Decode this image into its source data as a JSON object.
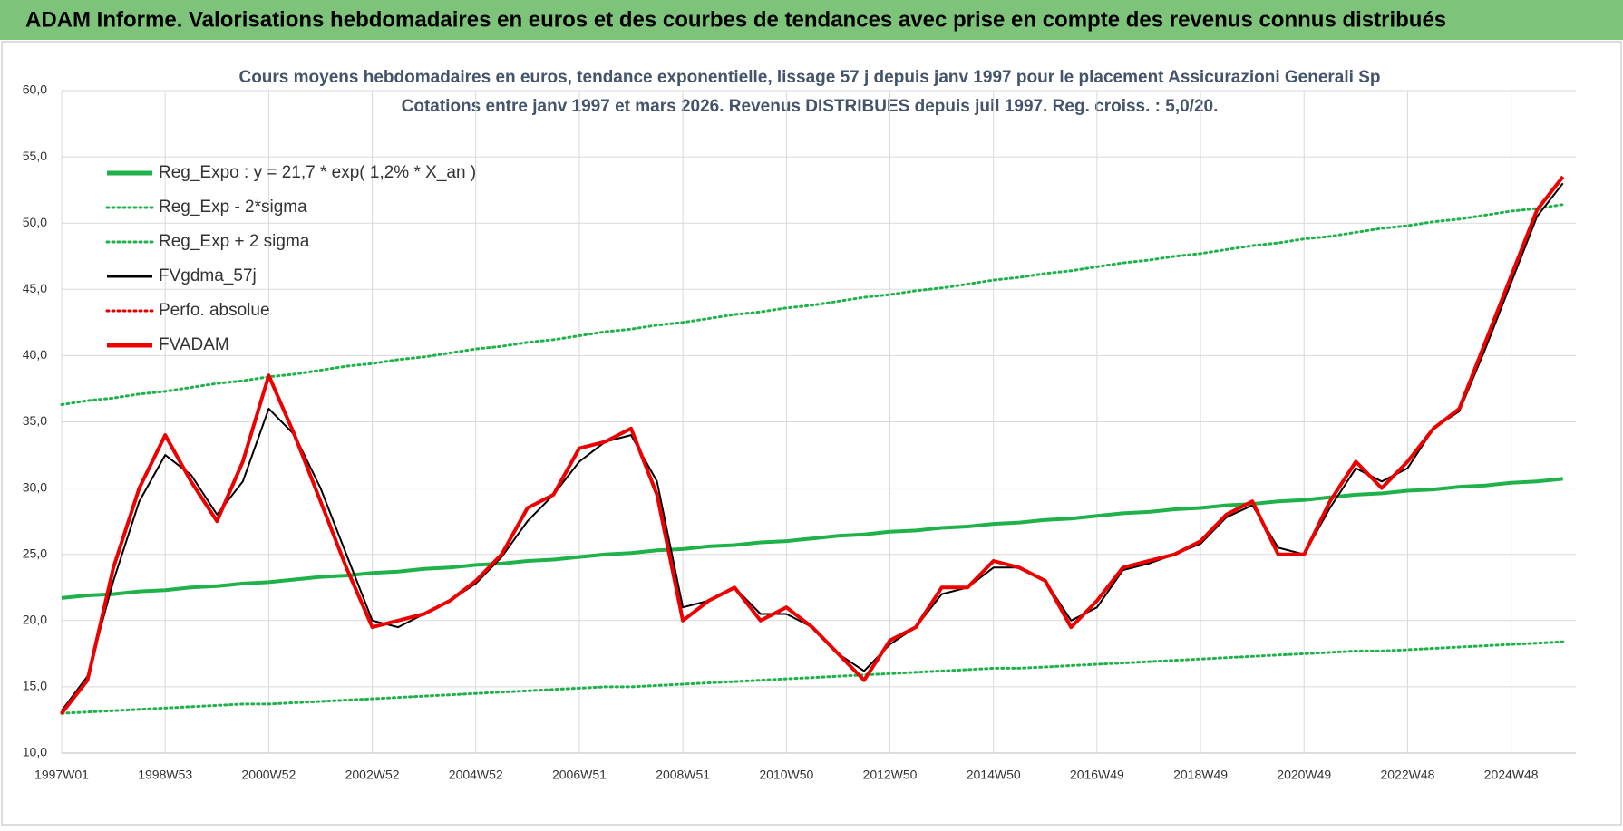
{
  "header": {
    "title": "ADAM Informe. Valorisations hebdomadaires en euros et des courbes de tendances avec prise en compte des revenus connus distribués"
  },
  "chart_data": {
    "type": "line",
    "title": "Cours moyens hebdomadaires en euros, tendance exponentielle, lissage 57 j depuis janv 1997  pour le placement Assicurazioni Generali Sp",
    "subtitle": "Cotations entre janv 1997 et mars 2026. Revenus DISTRIBUES depuis juil 1997. Reg. croiss. : 5,0/20.",
    "categories": [
      "1997W01",
      null,
      null,
      null,
      "1998W53",
      null,
      null,
      null,
      "2000W52",
      null,
      null,
      null,
      "2002W52",
      null,
      null,
      null,
      "2004W52",
      null,
      null,
      null,
      "2006W51",
      null,
      null,
      null,
      "2008W51",
      null,
      null,
      null,
      "2010W50",
      null,
      null,
      null,
      "2012W50",
      null,
      null,
      null,
      "2014W50",
      null,
      null,
      null,
      "2016W49",
      null,
      null,
      null,
      "2018W49",
      null,
      null,
      null,
      "2020W49",
      null,
      null,
      null,
      "2022W48",
      null,
      null,
      null,
      "2024W48",
      null,
      null
    ],
    "ylim": [
      10,
      60
    ],
    "yticks": [
      {
        "value": 10,
        "label": "10,0"
      },
      {
        "value": 15,
        "label": "15,0"
      },
      {
        "value": 20,
        "label": "20,0"
      },
      {
        "value": 25,
        "label": "25,0"
      },
      {
        "value": 30,
        "label": "30,0"
      },
      {
        "value": 35,
        "label": "35,0"
      },
      {
        "value": 40,
        "label": "40,0"
      },
      {
        "value": 45,
        "label": "45,0"
      },
      {
        "value": 50,
        "label": "50,0"
      },
      {
        "value": 55,
        "label": "55,0"
      },
      {
        "value": 60,
        "label": "60,0"
      }
    ],
    "grid": true,
    "legend": "upper left",
    "series": [
      {
        "name": "Reg_Expo : y = 21,7 * exp( 1,2% *  X_an )",
        "color": "#1fb24a",
        "line_style": "solid",
        "values": [
          21.7,
          21.9,
          22.0,
          22.2,
          22.3,
          22.5,
          22.6,
          22.8,
          22.9,
          23.1,
          23.3,
          23.4,
          23.6,
          23.7,
          23.9,
          24.0,
          24.2,
          24.3,
          24.5,
          24.6,
          24.8,
          25.0,
          25.1,
          25.3,
          25.4,
          25.6,
          25.7,
          25.9,
          26.0,
          26.2,
          26.4,
          26.5,
          26.7,
          26.8,
          27.0,
          27.1,
          27.3,
          27.4,
          27.6,
          27.7,
          27.9,
          28.1,
          28.2,
          28.4,
          28.5,
          28.7,
          28.8,
          29.0,
          29.1,
          29.3,
          29.5,
          29.6,
          29.8,
          29.9,
          30.1,
          30.2,
          30.4,
          30.5,
          30.7
        ]
      },
      {
        "name": "Reg_Exp - 2*sigma",
        "color": "#1fb24a",
        "line_style": "dotted",
        "values": [
          13.0,
          13.1,
          13.2,
          13.3,
          13.4,
          13.5,
          13.6,
          13.7,
          13.7,
          13.8,
          13.9,
          14.0,
          14.1,
          14.2,
          14.3,
          14.4,
          14.5,
          14.6,
          14.7,
          14.8,
          14.9,
          15.0,
          15.0,
          15.1,
          15.2,
          15.3,
          15.4,
          15.5,
          15.6,
          15.7,
          15.8,
          15.9,
          16.0,
          16.1,
          16.2,
          16.3,
          16.4,
          16.4,
          16.5,
          16.6,
          16.7,
          16.8,
          16.9,
          17.0,
          17.1,
          17.2,
          17.3,
          17.4,
          17.5,
          17.6,
          17.7,
          17.7,
          17.8,
          17.9,
          18.0,
          18.1,
          18.2,
          18.3,
          18.4
        ]
      },
      {
        "name": "Reg_Exp + 2 sigma",
        "color": "#1fb24a",
        "line_style": "dotted",
        "values": [
          36.3,
          36.6,
          36.8,
          37.1,
          37.3,
          37.6,
          37.9,
          38.1,
          38.4,
          38.6,
          38.9,
          39.2,
          39.4,
          39.7,
          39.9,
          40.2,
          40.5,
          40.7,
          41.0,
          41.2,
          41.5,
          41.8,
          42.0,
          42.3,
          42.5,
          42.8,
          43.1,
          43.3,
          43.6,
          43.8,
          44.1,
          44.4,
          44.6,
          44.9,
          45.1,
          45.4,
          45.7,
          45.9,
          46.2,
          46.4,
          46.7,
          47.0,
          47.2,
          47.5,
          47.7,
          48.0,
          48.3,
          48.5,
          48.8,
          49.0,
          49.3,
          49.6,
          49.8,
          50.1,
          50.3,
          50.6,
          50.9,
          51.1,
          51.4
        ]
      },
      {
        "name": "FVgdma_57j",
        "color": "#000000",
        "line_style": "solid",
        "values": [
          13.2,
          15.8,
          23,
          29,
          32.5,
          31,
          28,
          30.5,
          36,
          34,
          30,
          25,
          20,
          19.5,
          20.5,
          21.5,
          22.8,
          24.8,
          27.5,
          29.5,
          32,
          33.5,
          34,
          30.5,
          21,
          21.5,
          22.5,
          20.5,
          20.5,
          19.5,
          17.5,
          16.2,
          18.2,
          19.5,
          22,
          22.5,
          24,
          24,
          23,
          20,
          21,
          23.8,
          24.3,
          25,
          25.8,
          27.8,
          28.7,
          25.5,
          25,
          28.5,
          31.5,
          30.5,
          31.5,
          34.5,
          35.8,
          40.5,
          45.5,
          50.5,
          53
        ]
      },
      {
        "name": "Perfo. absolue",
        "color": "#e00000",
        "line_style": "dotted",
        "values": [
          13.0,
          15.5,
          24,
          30,
          34,
          30.5,
          27.5,
          32,
          38.5,
          34,
          29,
          24,
          19.5,
          20,
          20.5,
          21.5,
          23,
          25,
          28.5,
          29.5,
          33,
          33.5,
          34.5,
          29.5,
          20,
          21.5,
          22.5,
          20,
          21,
          19.5,
          17.5,
          15.5,
          18.5,
          19.5,
          22.5,
          22.5,
          24.5,
          24,
          23,
          19.5,
          21.5,
          24,
          24.5,
          25,
          26,
          28,
          29,
          25,
          25,
          29,
          32,
          30,
          32,
          34.5,
          36,
          41,
          46,
          51,
          53.5
        ]
      },
      {
        "name": "FVADAM",
        "color": "#ee0000",
        "line_style": "solid",
        "values": [
          13.0,
          15.5,
          24,
          30,
          34,
          30.5,
          27.5,
          32,
          38.5,
          34,
          29,
          24,
          19.5,
          20,
          20.5,
          21.5,
          23,
          25,
          28.5,
          29.5,
          33,
          33.5,
          34.5,
          29.5,
          20,
          21.5,
          22.5,
          20,
          21,
          19.5,
          17.5,
          15.5,
          18.5,
          19.5,
          22.5,
          22.5,
          24.5,
          24,
          23,
          19.5,
          21.5,
          24,
          24.5,
          25,
          26,
          28,
          29,
          25,
          25,
          29,
          32,
          30,
          32,
          34.5,
          36,
          41,
          46,
          51,
          53.5
        ]
      }
    ]
  }
}
